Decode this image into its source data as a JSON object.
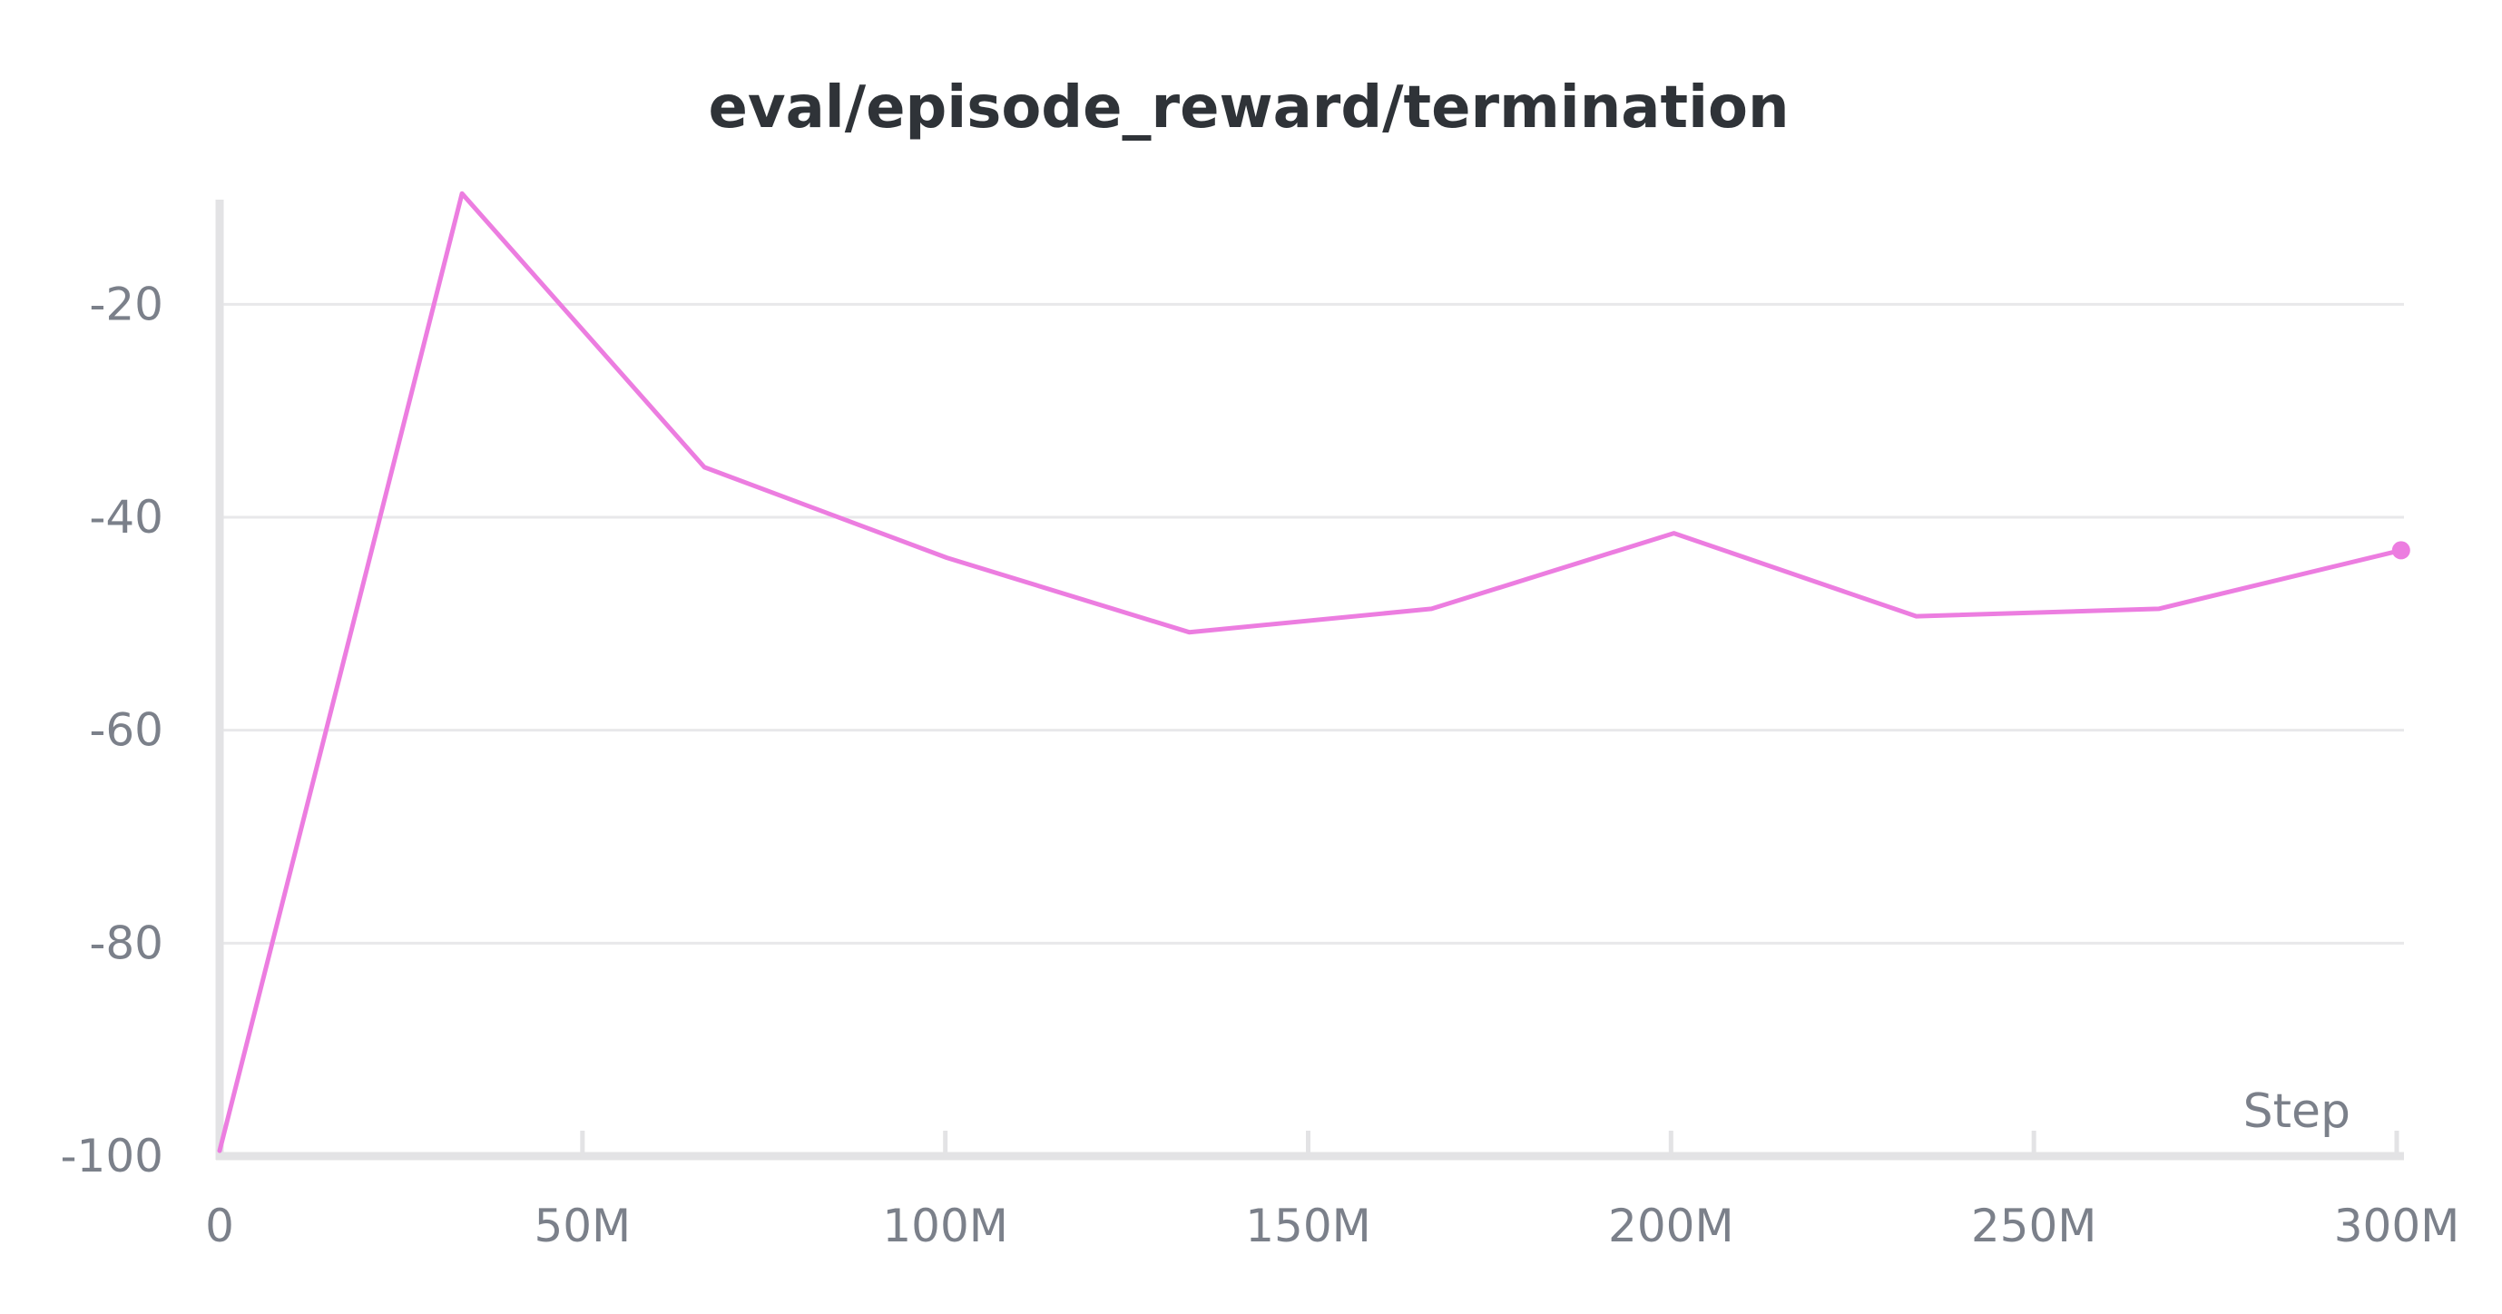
{
  "chart_data": {
    "type": "line",
    "title": "eval/episode_reward/termination",
    "xlabel": "Step",
    "ylabel": "",
    "xlim": [
      0,
      300000000
    ],
    "ylim": [
      -100,
      -10
    ],
    "xticks": [
      {
        "value": 0,
        "label": "0"
      },
      {
        "value": 50000000,
        "label": "50M"
      },
      {
        "value": 100000000,
        "label": "100M"
      },
      {
        "value": 150000000,
        "label": "150M"
      },
      {
        "value": 200000000,
        "label": "200M"
      },
      {
        "value": 250000000,
        "label": "250M"
      },
      {
        "value": 300000000,
        "label": "300M"
      }
    ],
    "yticks": [
      {
        "value": -20,
        "label": "-20"
      },
      {
        "value": -40,
        "label": "-40"
      },
      {
        "value": -60,
        "label": "-60"
      },
      {
        "value": -80,
        "label": "-80"
      },
      {
        "value": -100,
        "label": "-100"
      }
    ],
    "grid": true,
    "series": [
      {
        "color": "#ec7de0",
        "x": [
          0,
          33400000,
          66800000,
          100200000,
          133600000,
          167000000,
          200400000,
          233800000,
          267200000,
          300600000
        ],
        "y": [
          -99.5,
          -9.6,
          -35.3,
          -43.8,
          -50.8,
          -48.6,
          -41.5,
          -49.3,
          -48.6,
          -43.1
        ]
      }
    ]
  }
}
